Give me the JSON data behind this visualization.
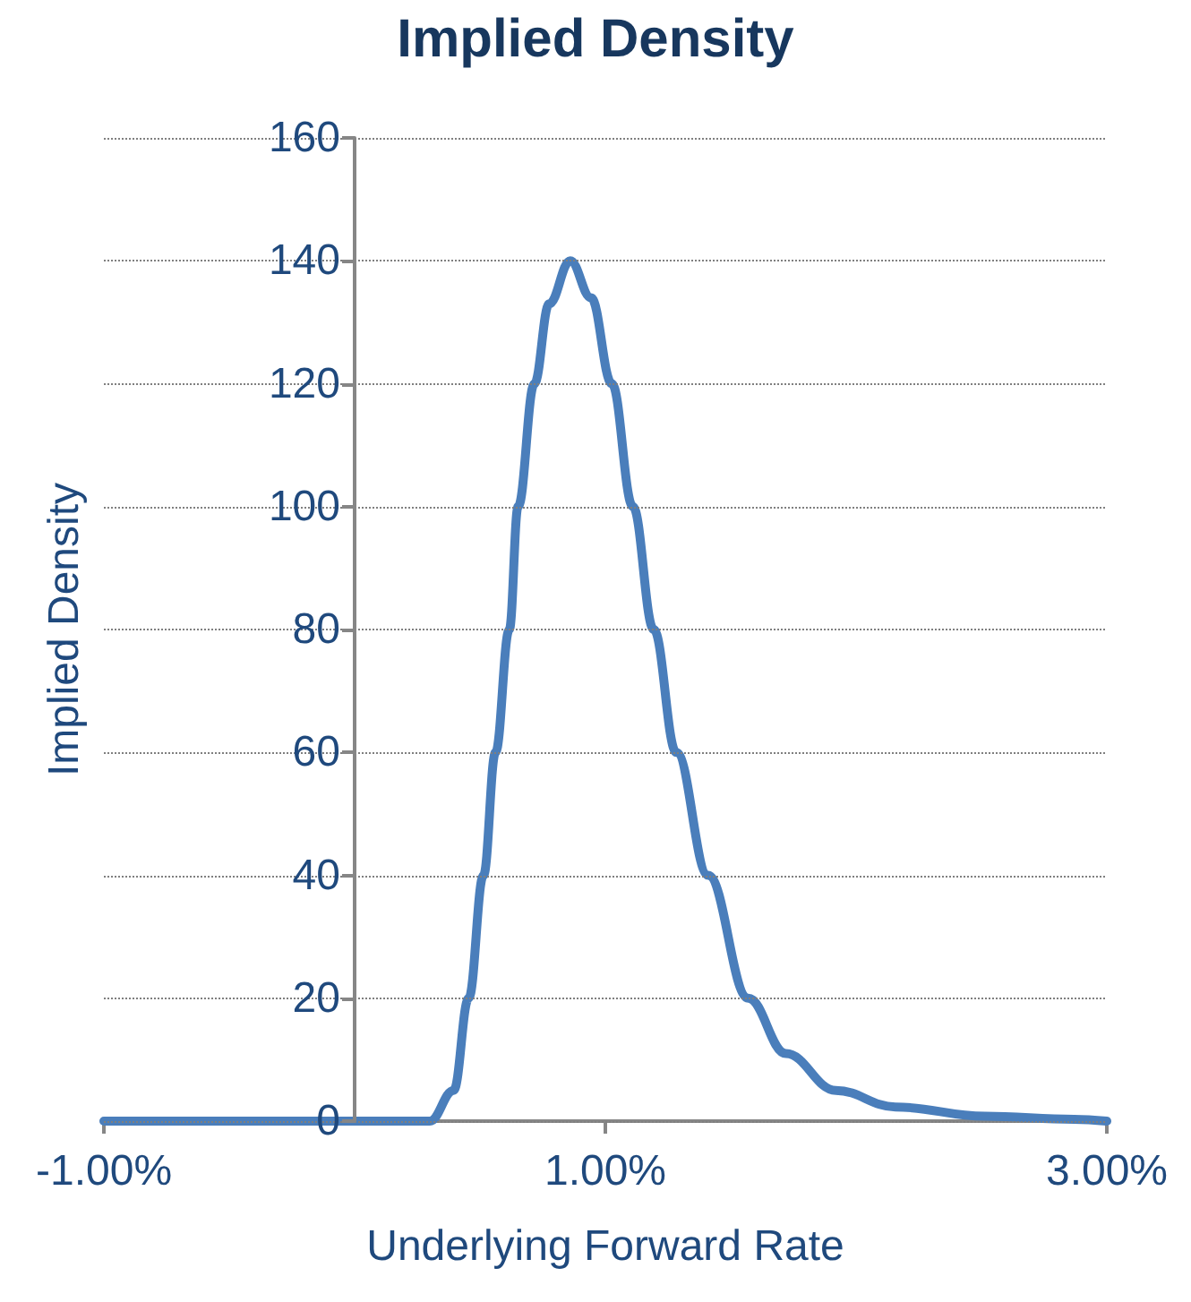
{
  "chart_data": {
    "type": "line",
    "title": "Implied Density",
    "xlabel": "Underlying Forward Rate",
    "ylabel": "Implied Density",
    "x": [
      -1.0,
      0.3,
      0.395,
      0.455,
      0.514,
      0.562,
      0.617,
      0.652,
      0.717,
      0.776,
      0.86,
      0.943,
      1.026,
      1.11,
      1.193,
      1.283,
      1.41,
      1.57,
      1.72,
      1.919,
      2.157,
      2.514,
      2.87,
      3.0
    ],
    "series": [
      {
        "color": "#4a7ebb",
        "values": [
          0,
          0,
          5,
          20,
          40,
          60,
          80,
          100,
          120,
          133,
          140,
          134,
          120,
          100,
          80,
          60,
          40,
          20,
          11,
          5,
          2.3,
          0.8,
          0.3,
          0
        ]
      }
    ],
    "xlim": [
      -1.0,
      3.0
    ],
    "xticks": [
      {
        "value": -1,
        "label": "-1.00%"
      },
      {
        "value": 1,
        "label": "1.00%"
      },
      {
        "value": 3,
        "label": "3.00%"
      }
    ],
    "ylim": [
      0,
      160
    ],
    "yticks": [
      0,
      20,
      40,
      60,
      80,
      100,
      120,
      140,
      160
    ],
    "grid": "y",
    "marker": "none",
    "line_style": "solid"
  }
}
